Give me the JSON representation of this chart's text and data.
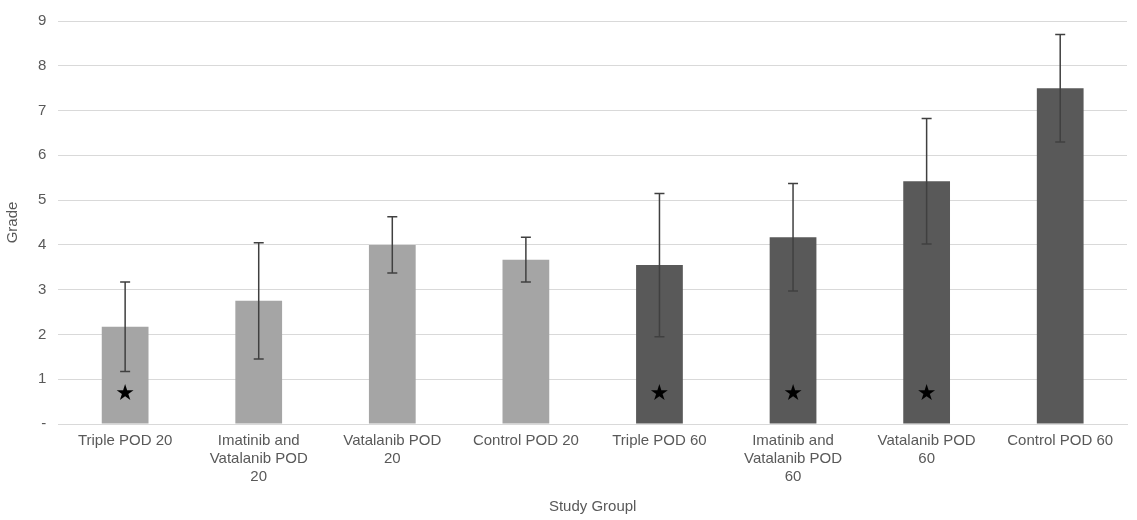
{
  "chart_data": {
    "type": "bar",
    "xlabel": "Study Groupl",
    "ylabel": "Grade",
    "categories": [
      "Triple POD 20",
      "Imatinib and Vatalanib POD 20",
      "Vatalanib POD 20",
      "Control POD 20",
      "Triple POD 60",
      "Imatinib and Vatalanib POD 60",
      "Vatalanib POD 60",
      "Control POD 60"
    ],
    "values": [
      2.17,
      2.75,
      4.0,
      3.67,
      3.55,
      4.17,
      5.42,
      7.5
    ],
    "errors": [
      1.0,
      1.3,
      0.63,
      0.5,
      1.6,
      1.2,
      1.4,
      1.2
    ],
    "colors": [
      "#a5a5a5",
      "#a5a5a5",
      "#a5a5a5",
      "#a5a5a5",
      "#595959",
      "#595959",
      "#595959",
      "#595959"
    ],
    "ylim": [
      0,
      9
    ],
    "yticks": [
      {
        "value": 0,
        "label": "-"
      },
      1,
      2,
      3,
      4,
      5,
      6,
      7,
      8,
      9
    ],
    "grid": "y",
    "legend": false,
    "value_labels": [
      "★",
      null,
      null,
      null,
      "★",
      "★",
      "★",
      null
    ]
  }
}
